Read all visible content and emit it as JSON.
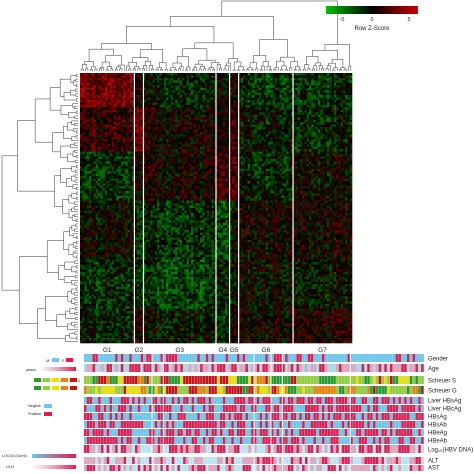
{
  "chart_data": {
    "type": "heatmap",
    "colorbar": {
      "title": "Row Z-Score",
      "ticks": [
        "-5",
        "0",
        "5"
      ],
      "range": [
        -5,
        5
      ],
      "colors": [
        "#00c000",
        "#000000",
        "#d00000"
      ]
    },
    "groups": [
      {
        "label": "G1",
        "cols": 24
      },
      {
        "label": "G2",
        "cols": 4
      },
      {
        "label": "G3",
        "cols": 32
      },
      {
        "label": "G4",
        "cols": 6
      },
      {
        "label": "G5",
        "cols": 4
      },
      {
        "label": "G6",
        "cols": 24
      },
      {
        "label": "G7",
        "cols": 26
      }
    ],
    "num_rows": 110,
    "annotation_tracks": [
      {
        "label": "Gender",
        "kind": "gender"
      },
      {
        "label": "Age",
        "kind": "age"
      },
      {
        "label": "Scheuer S",
        "kind": "scheuer"
      },
      {
        "label": "Scheuer G",
        "kind": "scheuer"
      },
      {
        "label": "Liver HBsAg",
        "kind": "binary"
      },
      {
        "label": "Liver HBcAg",
        "kind": "binary"
      },
      {
        "label": "HBsAg",
        "kind": "binary"
      },
      {
        "label": "HBsAb",
        "kind": "binary"
      },
      {
        "label": "HBeAg",
        "kind": "binary"
      },
      {
        "label": "HBeAb",
        "kind": "binary"
      },
      {
        "label": "Log₁₀(HBV DNA)",
        "kind": "continuous"
      },
      {
        "label": "ALT",
        "kind": "continuous"
      },
      {
        "label": "AST",
        "kind": "continuous"
      }
    ],
    "annotation_legends": {
      "gender": [
        "M",
        "F"
      ],
      "age": "years",
      "scheuer": [
        "0",
        "1",
        "2",
        "3",
        "4"
      ],
      "binary": [
        "Negtive",
        "Positive"
      ],
      "dna": "LOG10 (IU/ml)",
      "uln": "ULN"
    },
    "colors": {
      "red": "#e8194b",
      "blue": "#6fc6ea",
      "pink": "#e8a2b8",
      "heat_up": "#d00000",
      "heat_down": "#00c000",
      "scheuer": [
        "#2a9a2a",
        "#9acd32",
        "#f0e000",
        "#f08000",
        "#d01010"
      ]
    }
  }
}
